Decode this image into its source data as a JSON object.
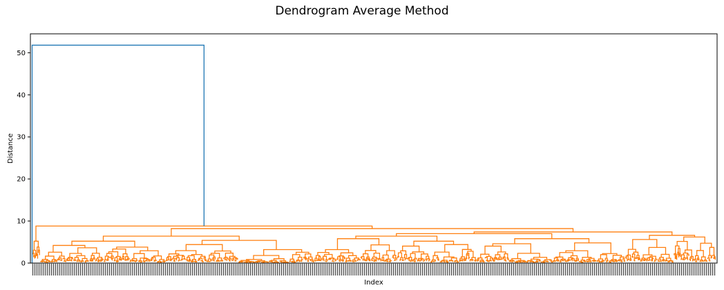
{
  "chart_data": {
    "type": "dendrogram",
    "title": "Dendrogram Average Method",
    "xlabel": "Index",
    "ylabel": "Distance",
    "ylim": [
      0,
      54.5
    ],
    "yticks": [
      0,
      10,
      20,
      30,
      40,
      50
    ],
    "grid": false,
    "legend": "none",
    "colors": {
      "top_link": "#1f77b4",
      "cluster": "#ff7f0e"
    },
    "top_merge_distance": 51.8,
    "major_merges": [
      {
        "distance": 8.8,
        "note": "upper join inside orange cluster"
      },
      {
        "distance": 8.2
      },
      {
        "distance": 7.4
      },
      {
        "distance": 6.4
      },
      {
        "distance": 5.8
      }
    ],
    "leaf_tick_labels_legible": false
  }
}
